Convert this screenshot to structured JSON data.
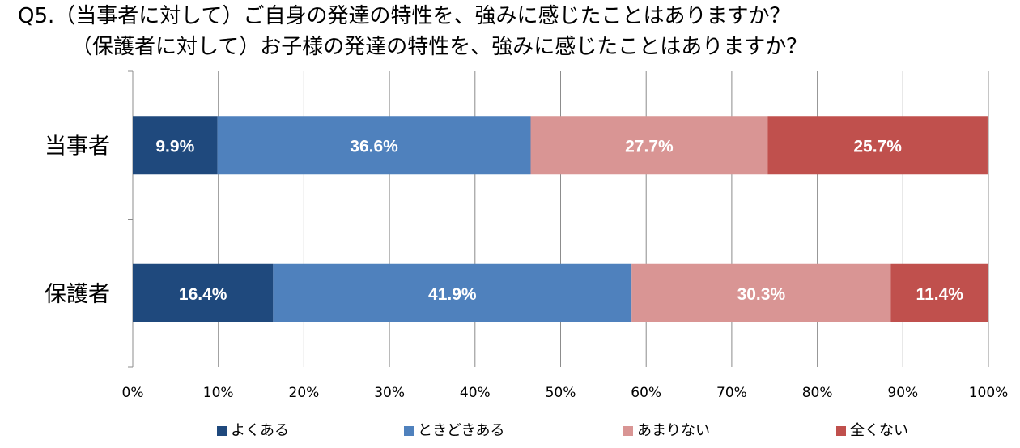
{
  "title_lines": [
    "Q5.（当事者に対して）ご自身の発達の特性を、強みに感じたことはありますか？",
    "（保護者に対して）お子様の発達の特性を、強みに感じたことはありますか？"
  ],
  "chart_data": {
    "type": "bar",
    "orientation": "horizontal",
    "stacked": true,
    "categories": [
      "当事者",
      "保護者"
    ],
    "series": [
      {
        "name": "よくある",
        "values": [
          9.9,
          16.4
        ],
        "labels": [
          "9.9%",
          "16.4%"
        ],
        "color": "#1f497d"
      },
      {
        "name": "ときどきある",
        "values": [
          36.6,
          41.9
        ],
        "labels": [
          "36.6%",
          "41.9%"
        ],
        "color": "#4f81bd"
      },
      {
        "name": "あまりない",
        "values": [
          27.7,
          30.3
        ],
        "labels": [
          "27.7%",
          "30.3%"
        ],
        "color": "#d99594"
      },
      {
        "name": "全くない",
        "values": [
          25.7,
          11.4
        ],
        "labels": [
          "25.7%",
          "11.4%"
        ],
        "color": "#c0504d"
      }
    ],
    "x_ticks": [
      "0%",
      "10%",
      "20%",
      "30%",
      "40%",
      "50%",
      "60%",
      "70%",
      "80%",
      "90%",
      "100%"
    ],
    "xlim": [
      0,
      100
    ],
    "grid": true,
    "legend": "bottom"
  }
}
